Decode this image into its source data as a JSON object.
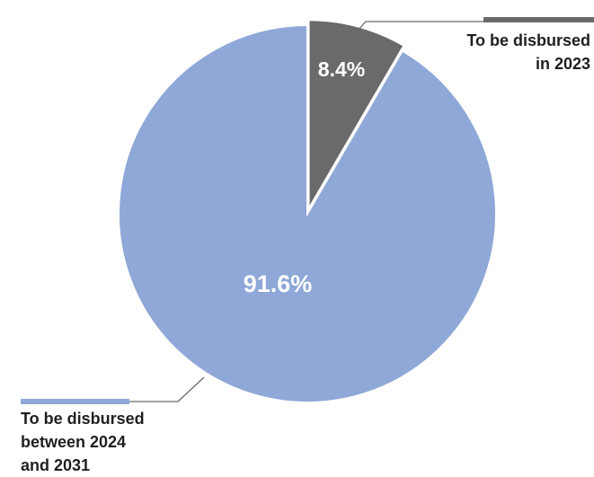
{
  "chart_data": {
    "type": "pie",
    "slices": [
      {
        "label": "To be disbursed\nin 2023",
        "value": 8.4,
        "display": "8.4%",
        "color": "#6a6a6a"
      },
      {
        "label": "To be disbursed\nbetween 2024\nand 2031",
        "value": 91.6,
        "display": "91.6%",
        "color": "#8fa8d8"
      }
    ],
    "start_angle": "12 o'clock",
    "direction": "clockwise",
    "legend": "callouts beside slices"
  },
  "colors": {
    "slice_2023": "#6a6a6a",
    "slice_2024": "#8fa8d8",
    "leader_line": "#6a6a6a",
    "text": "#1f1f1f"
  }
}
